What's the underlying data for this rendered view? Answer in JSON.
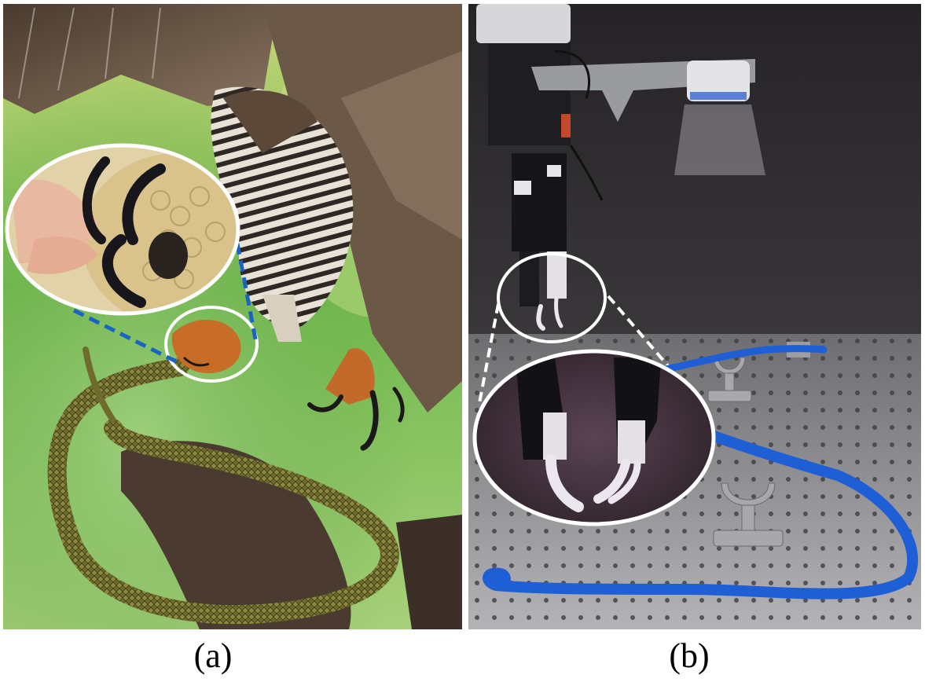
{
  "figure": {
    "panels": [
      {
        "id": "a",
        "caption": "(a)",
        "subject": "hawk-swooping-on-snake-with-claw-closeup",
        "colors": {
          "background_green": "#7fbf55",
          "snake": "#6b6a2e",
          "talon": "#1c1a1a",
          "foot": "#c9772e",
          "callout_line": "#1a63c4"
        }
      },
      {
        "id": "b",
        "caption": "(b)",
        "subject": "robot-gripper-with-claw-fingers-and-blue-rope",
        "colors": {
          "wall": "#2c2a2c",
          "table": "#9a9a9c",
          "rope": "#1f5fd6",
          "finger": "#ece6ee",
          "callout_line": "#ffffff"
        }
      }
    ]
  }
}
